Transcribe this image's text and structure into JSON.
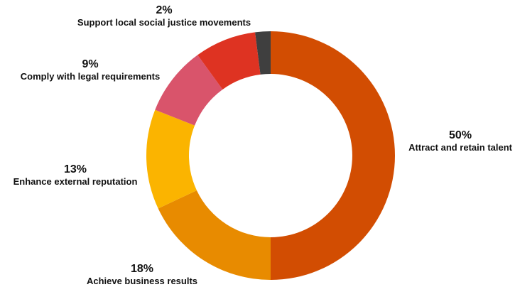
{
  "chart_data": {
    "type": "pie",
    "title": "",
    "slices": [
      {
        "label": "Attract and retain talent",
        "value": 50,
        "value_label": "50%",
        "color": "#d24d02"
      },
      {
        "label": "Achieve business results",
        "value": 18,
        "value_label": "18%",
        "color": "#e88b00"
      },
      {
        "label": "Enhance external reputation",
        "value": 13,
        "value_label": "13%",
        "color": "#fbb400"
      },
      {
        "label": "Comply with legal requirements",
        "value": 9,
        "value_label": "9%",
        "color": "#d9546b"
      },
      {
        "label": "Support local social justice movements",
        "value": 8,
        "value_label": "",
        "color": "#de3322"
      },
      {
        "label": "",
        "value": 2,
        "value_label": "2%",
        "color": "#3f3f3f"
      }
    ]
  }
}
